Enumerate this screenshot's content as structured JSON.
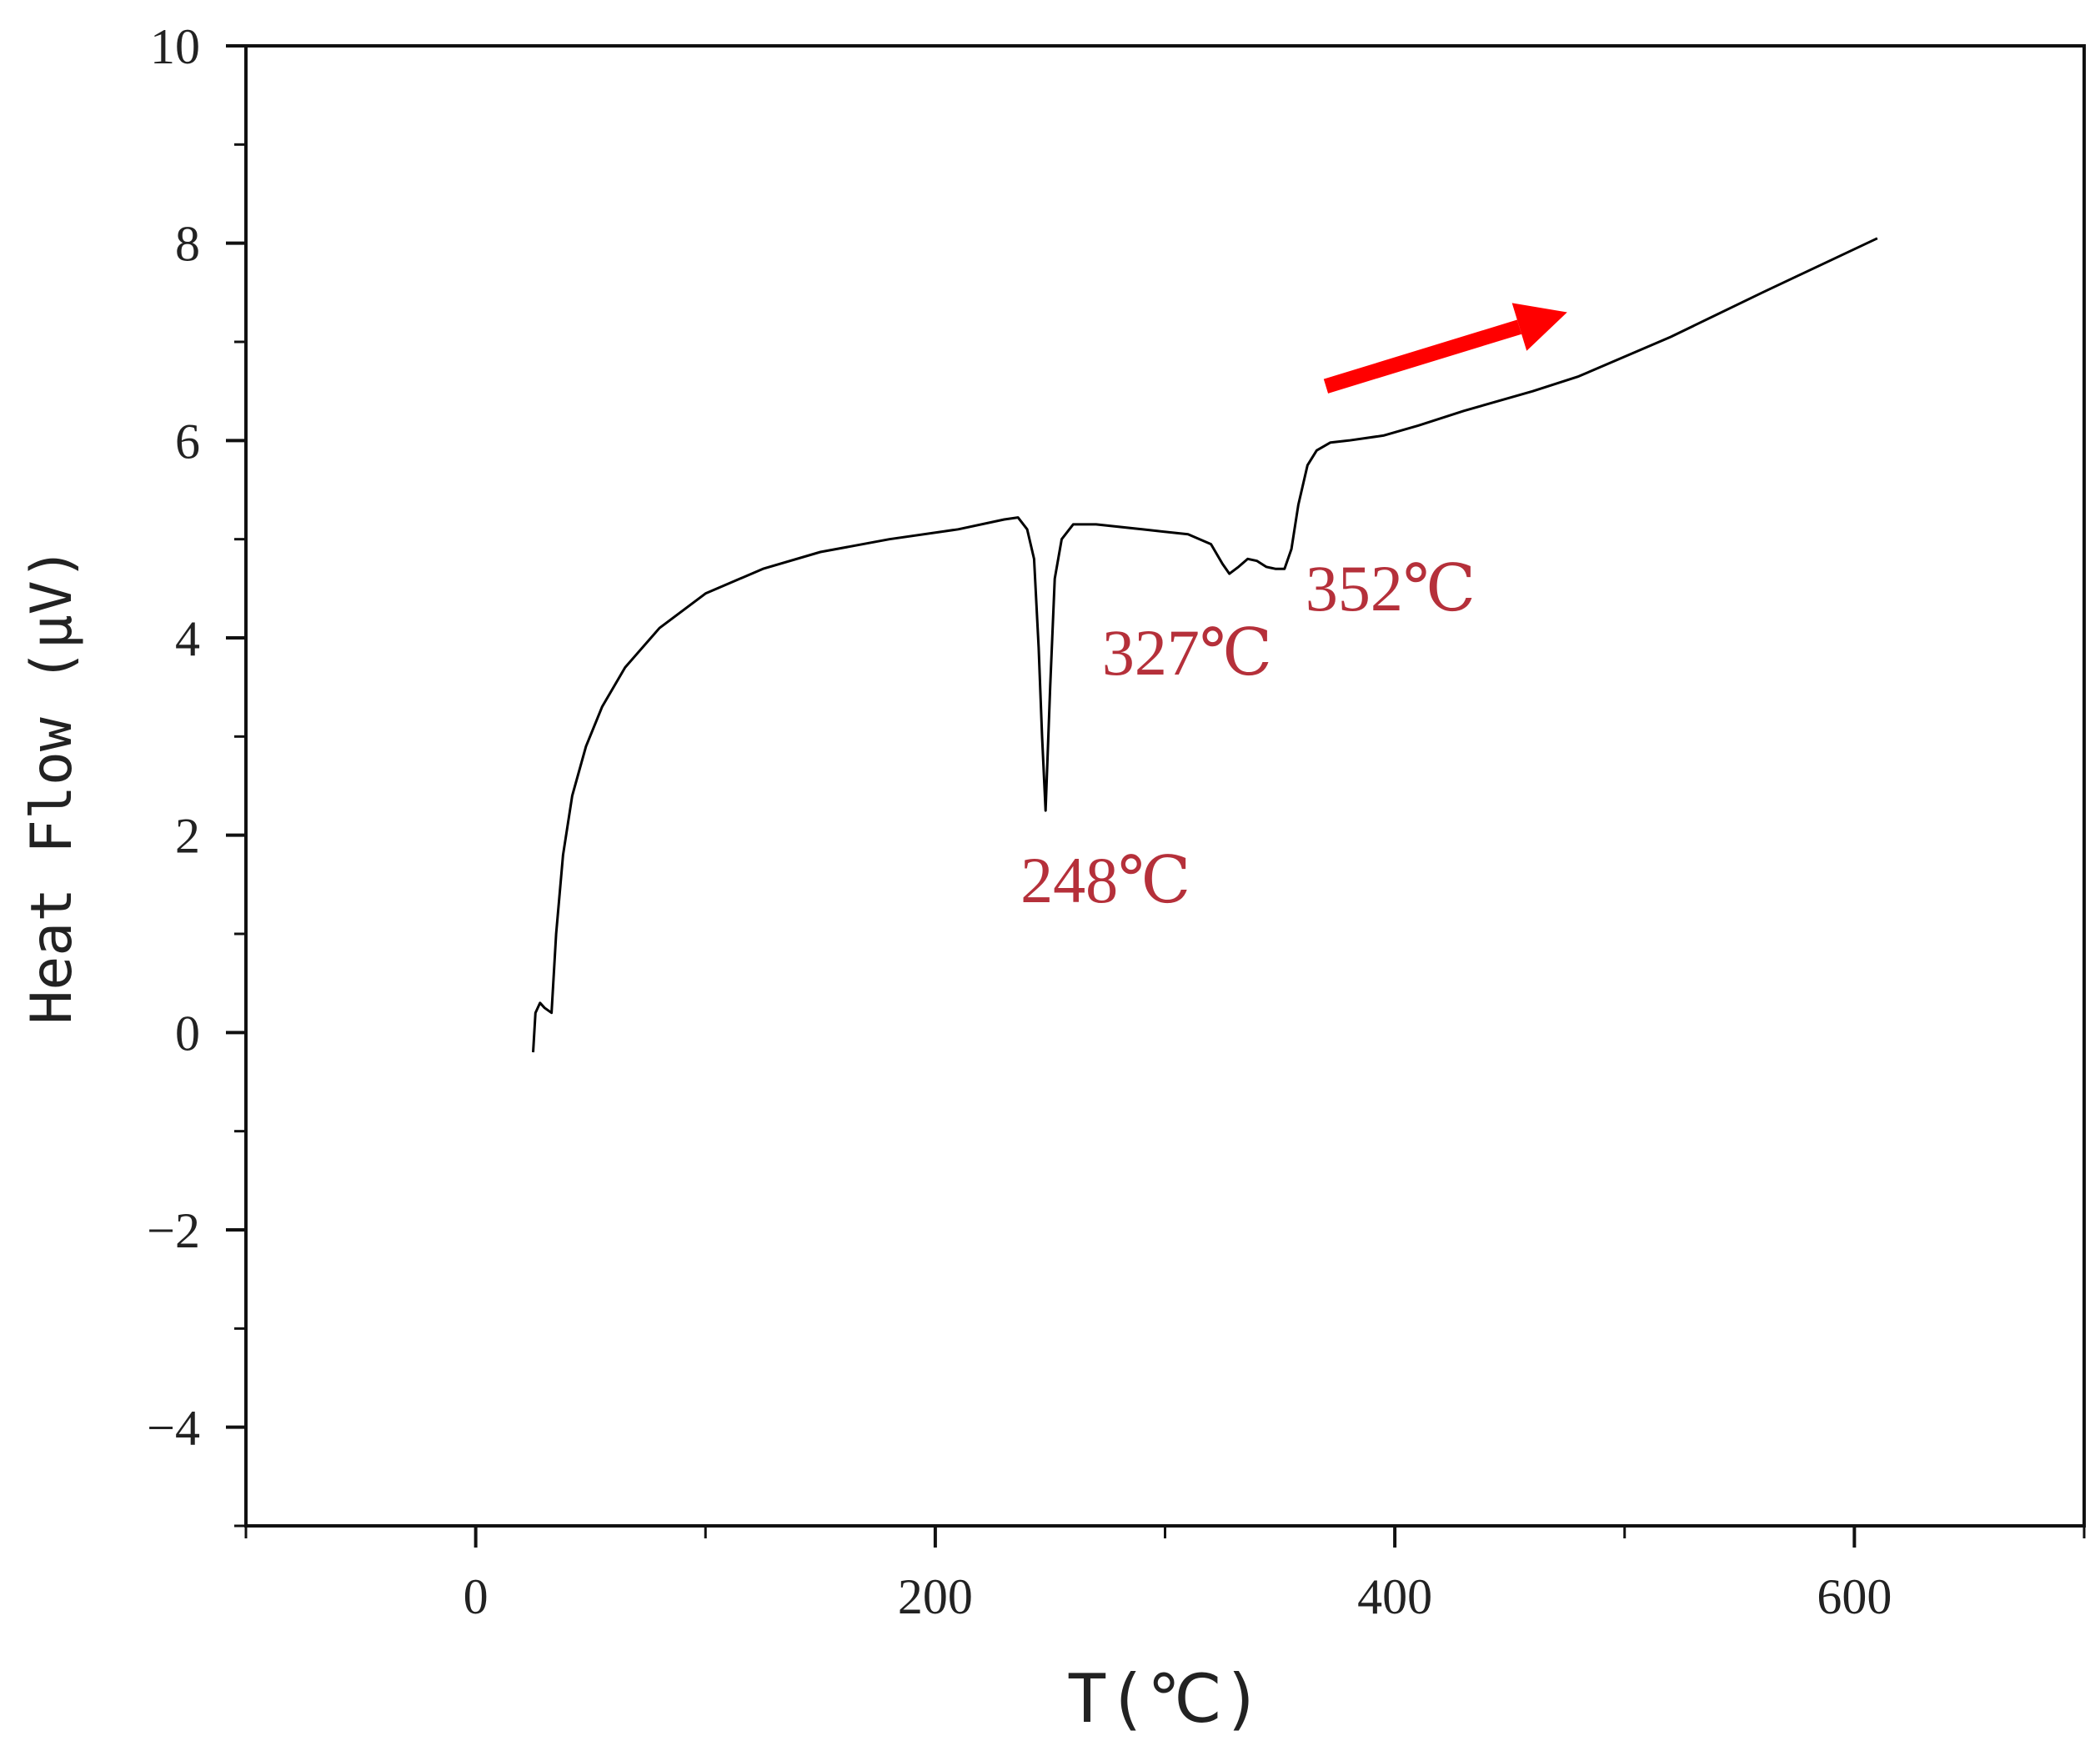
{
  "chart_data": {
    "type": "line",
    "title": "",
    "xlabel": "T(℃)",
    "ylabel": "Heat Flow (μV)",
    "xlim": [
      -100,
      700
    ],
    "ylim": [
      -5,
      10
    ],
    "x_ticks": [
      0,
      200,
      400,
      600
    ],
    "x_tick_labels": [
      "0",
      "200",
      "400",
      "600"
    ],
    "x_minor_ticks": [
      -100,
      100,
      300,
      500,
      700
    ],
    "y_ticks": [
      -4,
      -2,
      0,
      2,
      4,
      6,
      8,
      10
    ],
    "y_tick_labels": [
      "−4",
      "−2",
      "0",
      "2",
      "4",
      "6",
      "8",
      "10"
    ],
    "y_minor_step": 1,
    "grid": false,
    "legend": "none",
    "series": [
      {
        "color": "#000000",
        "x": [
          25,
          26,
          28,
          30,
          33,
          35,
          38,
          42,
          48,
          55,
          65,
          80,
          100,
          125,
          150,
          180,
          210,
          230,
          236,
          240,
          243,
          245,
          246.5,
          248,
          250,
          252,
          255,
          260,
          270,
          290,
          310,
          320,
          325,
          328,
          332,
          336,
          340,
          344,
          348,
          352,
          355,
          358,
          362,
          366,
          372,
          380,
          395,
          410,
          430,
          460,
          480,
          520,
          560,
          610
        ],
        "y": [
          -0.2,
          0.2,
          0.3,
          0.25,
          0.2,
          1.0,
          1.8,
          2.4,
          2.9,
          3.3,
          3.7,
          4.1,
          4.45,
          4.7,
          4.87,
          5.0,
          5.1,
          5.2,
          5.22,
          5.1,
          4.8,
          3.9,
          3.0,
          2.25,
          3.5,
          4.6,
          5.0,
          5.15,
          5.15,
          5.1,
          5.05,
          4.95,
          4.75,
          4.65,
          4.72,
          4.8,
          4.78,
          4.72,
          4.7,
          4.7,
          4.9,
          5.35,
          5.75,
          5.9,
          5.98,
          6.0,
          6.05,
          6.15,
          6.3,
          6.5,
          6.65,
          7.05,
          7.5,
          8.05
        ]
      }
    ],
    "annotations": [
      {
        "text": "248℃",
        "x": 248,
        "y": 2.25
      },
      {
        "text": "327℃",
        "x": 327,
        "y": 4.6
      },
      {
        "text": "352℃",
        "x": 352,
        "y": 4.7
      }
    ],
    "arrow": {
      "color": "#ff0000",
      "from": [
        370,
        6.55
      ],
      "to": [
        475,
        7.3
      ]
    }
  }
}
